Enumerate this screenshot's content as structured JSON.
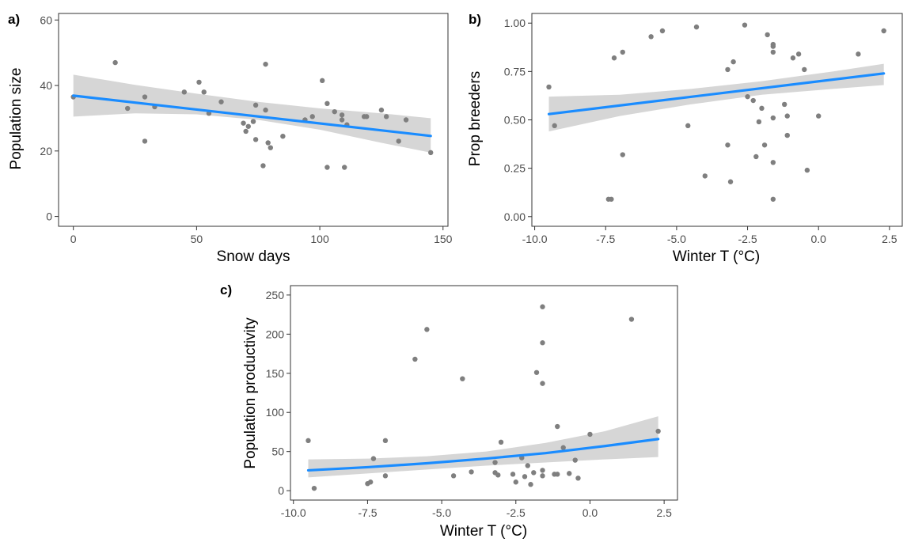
{
  "colors": {
    "point": "#7f7f7f",
    "fit_line": "#1a8cff",
    "ribbon": "#d4d4d4",
    "frame": "#333333",
    "tick_text": "#4d4d4d"
  },
  "chart_data": [
    {
      "panel": "a)",
      "type": "scatter",
      "xlabel": "Snow days",
      "ylabel": "Population size",
      "xlim": [
        -6,
        152
      ],
      "ylim": [
        -3,
        62
      ],
      "xticks": [
        0,
        50,
        100,
        150
      ],
      "xtick_labels": [
        "0",
        "50",
        "100",
        "150"
      ],
      "yticks": [
        0,
        20,
        40,
        60
      ],
      "ytick_labels": [
        "0",
        "20",
        "40",
        "60"
      ],
      "grid": false,
      "points": [
        [
          0,
          36.5
        ],
        [
          17,
          47
        ],
        [
          22,
          33
        ],
        [
          29,
          23
        ],
        [
          29,
          36.5
        ],
        [
          33,
          33.5
        ],
        [
          45,
          38
        ],
        [
          51,
          41
        ],
        [
          53,
          38
        ],
        [
          55,
          31.5
        ],
        [
          60,
          35
        ],
        [
          69,
          28.5
        ],
        [
          70,
          26
        ],
        [
          71,
          27.5
        ],
        [
          73,
          29
        ],
        [
          74,
          34
        ],
        [
          74,
          23.5
        ],
        [
          77,
          15.5
        ],
        [
          78,
          46.5
        ],
        [
          78,
          32.5
        ],
        [
          79,
          22.5
        ],
        [
          80,
          21
        ],
        [
          85,
          24.5
        ],
        [
          94,
          29.5
        ],
        [
          97,
          30.5
        ],
        [
          101,
          41.5
        ],
        [
          103,
          34.5
        ],
        [
          103,
          15
        ],
        [
          106,
          32
        ],
        [
          109,
          31
        ],
        [
          109,
          29.5
        ],
        [
          110,
          15
        ],
        [
          111,
          28
        ],
        [
          118,
          30.5
        ],
        [
          119,
          30.5
        ],
        [
          125,
          32.5
        ],
        [
          127,
          30.5
        ],
        [
          132,
          23
        ],
        [
          135,
          29.5
        ],
        [
          145,
          19.5
        ]
      ],
      "fit": {
        "x": [
          0,
          145
        ],
        "y": [
          36.9,
          24.6
        ]
      },
      "ribbon": {
        "x": [
          0,
          25,
          50,
          75,
          100,
          125,
          145
        ],
        "lower": [
          30.5,
          31.5,
          31.2,
          29.5,
          26.5,
          22.5,
          19.5
        ],
        "upper": [
          43.3,
          40.2,
          37.5,
          35.0,
          33.0,
          31.5,
          30.0
        ]
      }
    },
    {
      "panel": "b)",
      "type": "scatter",
      "xlabel": "Winter T (°C)",
      "ylabel": "Prop breeders",
      "xlim": [
        -10.1,
        2.95
      ],
      "ylim": [
        -0.05,
        1.05
      ],
      "xticks": [
        -10,
        -7.5,
        -5,
        -2.5,
        0,
        2.5
      ],
      "xtick_labels": [
        "-10.0",
        "-7.5",
        "-5.0",
        "-2.5",
        "0.0",
        "2.5"
      ],
      "yticks": [
        0,
        0.25,
        0.5,
        0.75,
        1.0
      ],
      "ytick_labels": [
        "0.00",
        "0.25",
        "0.50",
        "0.75",
        "1.00"
      ],
      "grid": false,
      "points": [
        [
          -9.5,
          0.67
        ],
        [
          -9.3,
          0.47
        ],
        [
          -7.4,
          0.09
        ],
        [
          -7.3,
          0.09
        ],
        [
          -7.2,
          0.82
        ],
        [
          -6.9,
          0.85
        ],
        [
          -6.9,
          0.32
        ],
        [
          -5.9,
          0.93
        ],
        [
          -5.5,
          0.96
        ],
        [
          -4.6,
          0.47
        ],
        [
          -4.3,
          0.98
        ],
        [
          -4.0,
          0.21
        ],
        [
          -3.2,
          0.37
        ],
        [
          -3.2,
          0.76
        ],
        [
          -3.1,
          0.18
        ],
        [
          -3.0,
          0.8
        ],
        [
          -2.6,
          0.99
        ],
        [
          -2.5,
          0.62
        ],
        [
          -2.3,
          0.6
        ],
        [
          -2.2,
          0.31
        ],
        [
          -2.1,
          0.49
        ],
        [
          -2.0,
          0.56
        ],
        [
          -1.9,
          0.37
        ],
        [
          -1.8,
          0.94
        ],
        [
          -1.6,
          0.89
        ],
        [
          -1.6,
          0.88
        ],
        [
          -1.6,
          0.85
        ],
        [
          -1.6,
          0.51
        ],
        [
          -1.6,
          0.28
        ],
        [
          -1.6,
          0.09
        ],
        [
          -1.2,
          0.58
        ],
        [
          -1.1,
          0.52
        ],
        [
          -1.1,
          0.42
        ],
        [
          -0.9,
          0.82
        ],
        [
          -0.7,
          0.84
        ],
        [
          -0.5,
          0.76
        ],
        [
          -0.4,
          0.24
        ],
        [
          0.0,
          0.52
        ],
        [
          1.4,
          0.84
        ],
        [
          2.3,
          0.96
        ]
      ],
      "fit": {
        "x": [
          -9.5,
          2.3
        ],
        "y": [
          0.53,
          0.74
        ]
      },
      "ribbon": {
        "x": [
          -9.5,
          -7.0,
          -4.5,
          -2.0,
          0.5,
          2.3
        ],
        "lower": [
          0.44,
          0.52,
          0.58,
          0.63,
          0.66,
          0.68
        ],
        "upper": [
          0.62,
          0.63,
          0.66,
          0.7,
          0.75,
          0.79
        ]
      }
    },
    {
      "panel": "c)",
      "type": "scatter",
      "xlabel": "Winter T (°C)",
      "ylabel": "Population productivity",
      "xlim": [
        -10.1,
        2.95
      ],
      "ylim": [
        -12,
        262
      ],
      "xticks": [
        -10,
        -7.5,
        -5,
        -2.5,
        0,
        2.5
      ],
      "xtick_labels": [
        "-10.0",
        "-7.5",
        "-5.0",
        "-2.5",
        "0.0",
        "2.5"
      ],
      "yticks": [
        0,
        50,
        100,
        150,
        200,
        250
      ],
      "ytick_labels": [
        "0",
        "50",
        "100",
        "150",
        "200",
        "250"
      ],
      "grid": false,
      "points": [
        [
          -9.5,
          64
        ],
        [
          -9.3,
          3
        ],
        [
          -7.5,
          9
        ],
        [
          -7.4,
          11
        ],
        [
          -7.3,
          41
        ],
        [
          -6.9,
          64
        ],
        [
          -6.9,
          19
        ],
        [
          -5.9,
          168
        ],
        [
          -5.5,
          206
        ],
        [
          -4.6,
          19
        ],
        [
          -4.3,
          143
        ],
        [
          -4.0,
          24
        ],
        [
          -3.2,
          36
        ],
        [
          -3.2,
          23
        ],
        [
          -3.1,
          20
        ],
        [
          -3.0,
          62
        ],
        [
          -2.6,
          21
        ],
        [
          -2.5,
          11
        ],
        [
          -2.3,
          42
        ],
        [
          -2.2,
          18
        ],
        [
          -2.1,
          32
        ],
        [
          -2.0,
          8
        ],
        [
          -1.9,
          23
        ],
        [
          -1.8,
          151
        ],
        [
          -1.6,
          235
        ],
        [
          -1.6,
          189
        ],
        [
          -1.6,
          137
        ],
        [
          -1.6,
          26
        ],
        [
          -1.6,
          19
        ],
        [
          -1.2,
          21
        ],
        [
          -1.1,
          82
        ],
        [
          -1.1,
          21
        ],
        [
          -0.9,
          55
        ],
        [
          -0.7,
          22
        ],
        [
          -0.5,
          39
        ],
        [
          -0.4,
          16
        ],
        [
          0.0,
          72
        ],
        [
          1.4,
          219
        ],
        [
          2.3,
          76
        ]
      ],
      "fit": {
        "x": [
          -9.5,
          -7.5,
          -5.5,
          -3.5,
          -1.5,
          0.5,
          2.3
        ],
        "y": [
          26,
          30,
          35,
          41,
          48,
          57,
          66
        ]
      },
      "ribbon": {
        "x": [
          -9.5,
          -7.5,
          -5.5,
          -3.5,
          -1.5,
          0.5,
          2.3
        ],
        "lower": [
          17,
          22,
          27,
          32,
          36,
          40,
          43
        ],
        "upper": [
          40,
          41,
          44,
          50,
          61,
          76,
          95
        ]
      }
    }
  ]
}
